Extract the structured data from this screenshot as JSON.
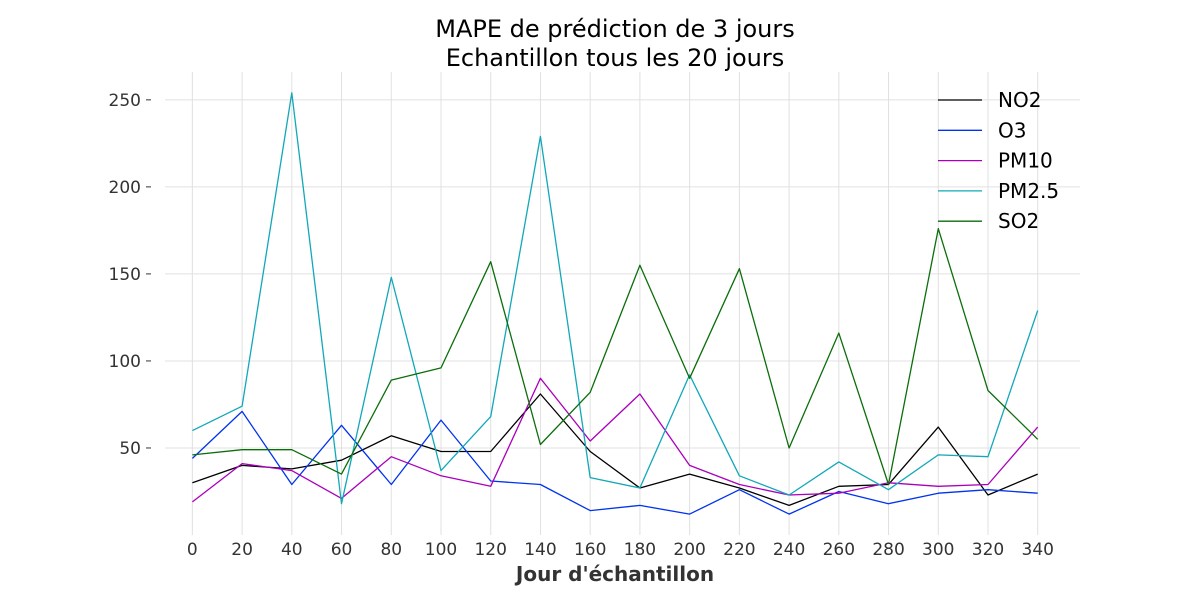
{
  "chart_data": {
    "type": "line",
    "title": "MAPE de prédiction de 3 jours",
    "subtitle": "Echantillon tous les 20 jours",
    "xlabel": "Jour d'échantillon",
    "ylabel": "",
    "x": [
      0,
      20,
      40,
      60,
      80,
      100,
      120,
      140,
      160,
      180,
      200,
      220,
      240,
      260,
      280,
      300,
      320,
      340
    ],
    "x_ticks": [
      "0",
      "20",
      "40",
      "60",
      "80",
      "100",
      "120",
      "140",
      "160",
      "180",
      "200",
      "220",
      "240",
      "260",
      "280",
      "300",
      "320",
      "340"
    ],
    "y_ticks": [
      "50",
      "100",
      "150",
      "200",
      "250"
    ],
    "xlim": [
      -11,
      357
    ],
    "ylim": [
      0,
      266
    ],
    "grid": true,
    "legend_position": "top-right",
    "series": [
      {
        "name": "NO2",
        "color": "#000000",
        "values": [
          30,
          40,
          38,
          43,
          57,
          48,
          48,
          81,
          48,
          27,
          35,
          27,
          17,
          28,
          29,
          62,
          23,
          35
        ]
      },
      {
        "name": "O3",
        "color": "#0033ee",
        "values": [
          44,
          71,
          29,
          63,
          29,
          66,
          31,
          29,
          14,
          17,
          12,
          26,
          12,
          25,
          18,
          24,
          26,
          24
        ]
      },
      {
        "name": "PM10",
        "color": "#aa00bb",
        "values": [
          19,
          41,
          37,
          21,
          45,
          34,
          28,
          90,
          54,
          81,
          40,
          29,
          23,
          24,
          30,
          28,
          29,
          62
        ]
      },
      {
        "name": "PM2.5",
        "color": "#11a8b8",
        "values": [
          60,
          74,
          254,
          18,
          148,
          37,
          68,
          229,
          33,
          27,
          92,
          34,
          23,
          42,
          26,
          46,
          45,
          129
        ]
      },
      {
        "name": "SO2",
        "color": "#0b6e0b",
        "values": [
          46,
          49,
          49,
          35,
          89,
          96,
          157,
          52,
          82,
          155,
          90,
          153,
          50,
          116,
          29,
          176,
          83,
          55
        ]
      }
    ]
  }
}
